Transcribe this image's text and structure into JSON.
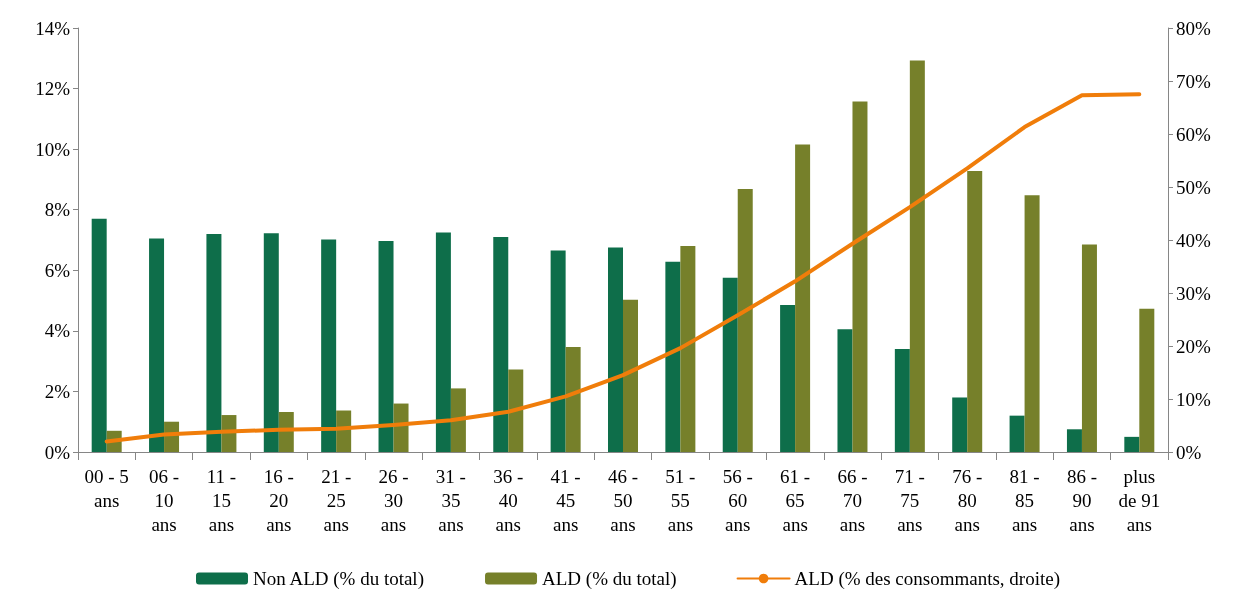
{
  "chart_data": {
    "type": "bar",
    "categories": [
      "00 - 5\nans",
      "06 -\n10\nans",
      "11 -\n15\nans",
      "16 -\n20\nans",
      "21 -\n25\nans",
      "26 -\n30\nans",
      "31 -\n35\nans",
      "36 -\n40\nans",
      "41 -\n45\nans",
      "46 -\n50\nans",
      "51 -\n55\nans",
      "56 -\n60\nans",
      "61 -\n65\nans",
      "66 -\n70\nans",
      "71 -\n75\nans",
      "76 -\n80\nans",
      "81 -\n85\nans",
      "86 -\n90\nans",
      "plus\nde 91\nans"
    ],
    "series": [
      {
        "name": "Non ALD (% du total)",
        "color": "#0e6e4a",
        "values": [
          7.7,
          7.05,
          7.2,
          7.22,
          7.02,
          6.97,
          7.25,
          7.1,
          6.65,
          6.75,
          6.28,
          5.75,
          4.85,
          4.05,
          3.4,
          1.8,
          1.2,
          0.75,
          0.5
        ]
      },
      {
        "name": "ALD (% du total)",
        "color": "#76802a",
        "values": [
          0.7,
          1.0,
          1.22,
          1.32,
          1.37,
          1.6,
          2.1,
          2.72,
          3.47,
          5.03,
          6.8,
          8.68,
          10.15,
          11.57,
          12.93,
          9.28,
          8.48,
          6.85,
          4.73
        ]
      },
      {
        "name": "ALD (% des consommants, droite)",
        "type": "line",
        "axis": "y2",
        "color": "#f07d0a",
        "values": [
          2.0,
          3.3,
          3.8,
          4.2,
          4.4,
          5.1,
          6.0,
          7.6,
          10.5,
          14.5,
          19.6,
          25.8,
          32.2,
          39.3,
          46.2,
          53.5,
          61.3,
          67.3,
          67.5
        ]
      }
    ],
    "ylim": [
      0,
      14
    ],
    "yticks": [
      {
        "value": 0,
        "label": "0%"
      },
      {
        "value": 2,
        "label": "2%"
      },
      {
        "value": 4,
        "label": "4%"
      },
      {
        "value": 6,
        "label": "6%"
      },
      {
        "value": 8,
        "label": "8%"
      },
      {
        "value": 10,
        "label": "10%"
      },
      {
        "value": 12,
        "label": "12%"
      },
      {
        "value": 14,
        "label": "14%"
      }
    ],
    "y2lim": [
      0,
      80
    ],
    "y2ticks": [
      {
        "value": 0,
        "label": "0%"
      },
      {
        "value": 10,
        "label": "10%"
      },
      {
        "value": 20,
        "label": "20%"
      },
      {
        "value": 30,
        "label": "30%"
      },
      {
        "value": 40,
        "label": "40%"
      },
      {
        "value": 50,
        "label": "50%"
      },
      {
        "value": 60,
        "label": "60%"
      },
      {
        "value": 70,
        "label": "70%"
      },
      {
        "value": 80,
        "label": "80%"
      }
    ],
    "grid": false,
    "legend": "bottom",
    "marker": "none"
  }
}
